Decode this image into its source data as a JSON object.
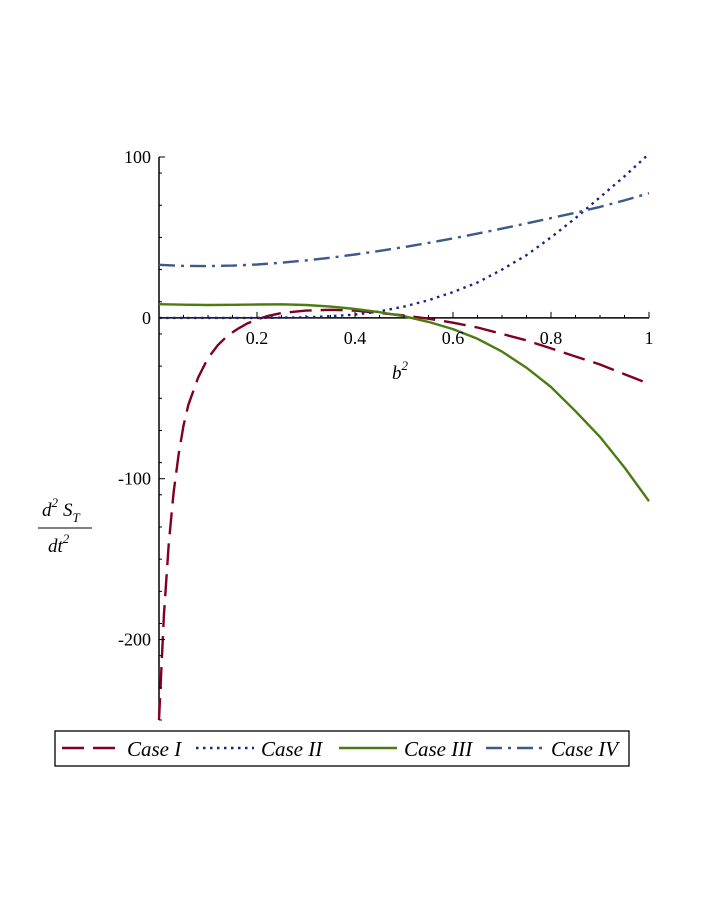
{
  "chart_data": {
    "type": "line",
    "title": "",
    "xlabel": "b",
    "xlabel_sup": "2",
    "ylabel_num_main": "d",
    "ylabel_num_sup": "2",
    "ylabel_num_s": "S",
    "ylabel_num_sub": "T",
    "ylabel_den_main": "dt",
    "ylabel_den_sup": "2",
    "xlim": [
      0,
      1
    ],
    "ylim": [
      -250,
      100
    ],
    "x_ticks": [
      {
        "value": 0.2,
        "label": "0.2"
      },
      {
        "value": 0.4,
        "label": "0.4"
      },
      {
        "value": 0.6,
        "label": "0.6"
      },
      {
        "value": 0.8,
        "label": "0.8"
      },
      {
        "value": 1,
        "label": "1"
      }
    ],
    "y_ticks": [
      {
        "value": 100,
        "label": "100"
      },
      {
        "value": 0,
        "label": "0"
      },
      {
        "value": -100,
        "label": "-100"
      },
      {
        "value": -200,
        "label": "-200"
      }
    ],
    "grid": false,
    "legend_position": "bottom",
    "series": [
      {
        "name": "Case I",
        "color": "#800020",
        "dash": "long-dash",
        "x": [
          0.0,
          0.01,
          0.02,
          0.03,
          0.04,
          0.05,
          0.06,
          0.08,
          0.1,
          0.12,
          0.14,
          0.16,
          0.18,
          0.2,
          0.22,
          0.25,
          0.3,
          0.35,
          0.4,
          0.45,
          0.5,
          0.55,
          0.6,
          0.65,
          0.7,
          0.75,
          0.8,
          0.85,
          0.9,
          0.95,
          1.0
        ],
        "y": [
          -250,
          -185,
          -140,
          -108,
          -85,
          -67,
          -54,
          -37,
          -25,
          -17,
          -11,
          -7,
          -3.5,
          -1,
          1,
          3,
          4.5,
          5,
          4.5,
          3,
          1.5,
          -0.5,
          -3,
          -6,
          -10,
          -14,
          -19,
          -24,
          -29,
          -35,
          -41
        ]
      },
      {
        "name": "Case II",
        "color": "#1a237e",
        "dash": "dotted",
        "x": [
          0.0,
          0.1,
          0.2,
          0.3,
          0.35,
          0.4,
          0.45,
          0.5,
          0.55,
          0.6,
          0.65,
          0.7,
          0.75,
          0.8,
          0.85,
          0.9,
          0.95,
          1.0
        ],
        "y": [
          0,
          0,
          0,
          0.3,
          1,
          2,
          4,
          7,
          11,
          16,
          22,
          30,
          39,
          50,
          62,
          75,
          88,
          102
        ]
      },
      {
        "name": "Case III",
        "color": "#4a7c12",
        "dash": "solid",
        "x": [
          0.0,
          0.05,
          0.1,
          0.15,
          0.2,
          0.25,
          0.3,
          0.35,
          0.4,
          0.45,
          0.5,
          0.55,
          0.6,
          0.65,
          0.7,
          0.75,
          0.8,
          0.85,
          0.9,
          0.95,
          1.0
        ],
        "y": [
          8.5,
          8.2,
          8.0,
          8.1,
          8.3,
          8.4,
          8.0,
          7.0,
          5.5,
          3.5,
          1.0,
          -2.5,
          -7,
          -13,
          -21,
          -31,
          -43,
          -58,
          -74,
          -93,
          -114
        ]
      },
      {
        "name": "Case IV",
        "color": "#3a5a8c",
        "dash": "dash-dot",
        "x": [
          0.0,
          0.05,
          0.1,
          0.15,
          0.2,
          0.25,
          0.3,
          0.35,
          0.4,
          0.45,
          0.5,
          0.55,
          0.6,
          0.65,
          0.7,
          0.75,
          0.8,
          0.85,
          0.9,
          0.95,
          1.0
        ],
        "y": [
          33,
          32.3,
          32.2,
          32.5,
          33.2,
          34.3,
          35.7,
          37.4,
          39.4,
          41.6,
          44,
          46.6,
          49.4,
          52.4,
          55.5,
          58.7,
          62,
          65.4,
          69,
          73,
          77.5
        ]
      }
    ]
  }
}
